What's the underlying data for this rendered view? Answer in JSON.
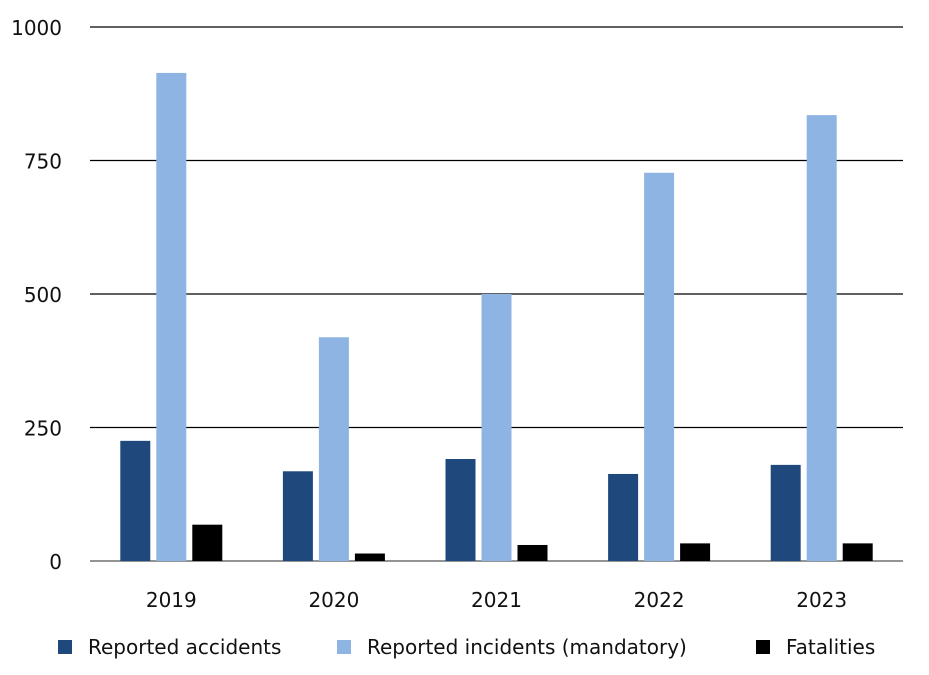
{
  "chart_data": {
    "type": "bar",
    "title": "",
    "xlabel": "",
    "ylabel": "",
    "categories": [
      "2019",
      "2020",
      "2021",
      "2022",
      "2023"
    ],
    "series": [
      {
        "name": "Reported accidents",
        "color": "#1f497d",
        "values": [
          225,
          168,
          191,
          163,
          180
        ]
      },
      {
        "name": "Reported incidents (mandatory)",
        "color": "#8eb4e3",
        "values": [
          914,
          419,
          500,
          727,
          835
        ]
      },
      {
        "name": "Fatalities",
        "color": "#000000",
        "values": [
          68,
          14,
          30,
          33,
          33
        ]
      }
    ],
    "ylim": [
      0,
      1000
    ],
    "yticks": [
      "0",
      "250",
      "500",
      "750",
      "1000"
    ],
    "grid": true,
    "legend": "bottom"
  }
}
